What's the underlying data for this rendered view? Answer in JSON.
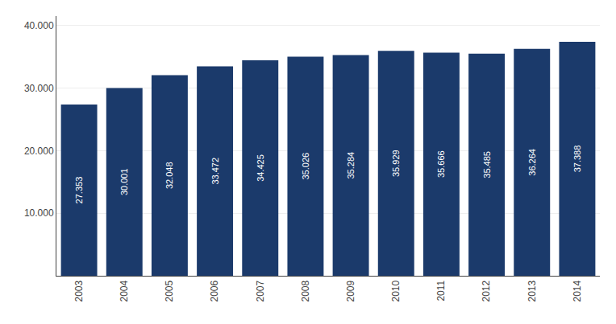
{
  "chart_data": {
    "type": "bar",
    "categories": [
      "2003",
      "2004",
      "2005",
      "2006",
      "2007",
      "2008",
      "2009",
      "2010",
      "2011",
      "2012",
      "2013",
      "2014"
    ],
    "values": [
      27353,
      30001,
      32048,
      33472,
      34425,
      35026,
      35284,
      35929,
      35666,
      35485,
      36264,
      37388
    ],
    "value_labels": [
      "27.353",
      "30.001",
      "32.048",
      "33.472",
      "34.425",
      "35.026",
      "35.284",
      "35.929",
      "35.666",
      "35.485",
      "36.264",
      "37.388"
    ],
    "data_labels": true,
    "color": "#1b3a6b",
    "ylim": [
      0,
      41500
    ],
    "yticks": [
      {
        "value": 10000,
        "label": "10.000"
      },
      {
        "value": 20000,
        "label": "20.000"
      },
      {
        "value": 30000,
        "label": "30.000"
      },
      {
        "value": 40000,
        "label": "40.000"
      }
    ],
    "grid": true
  }
}
